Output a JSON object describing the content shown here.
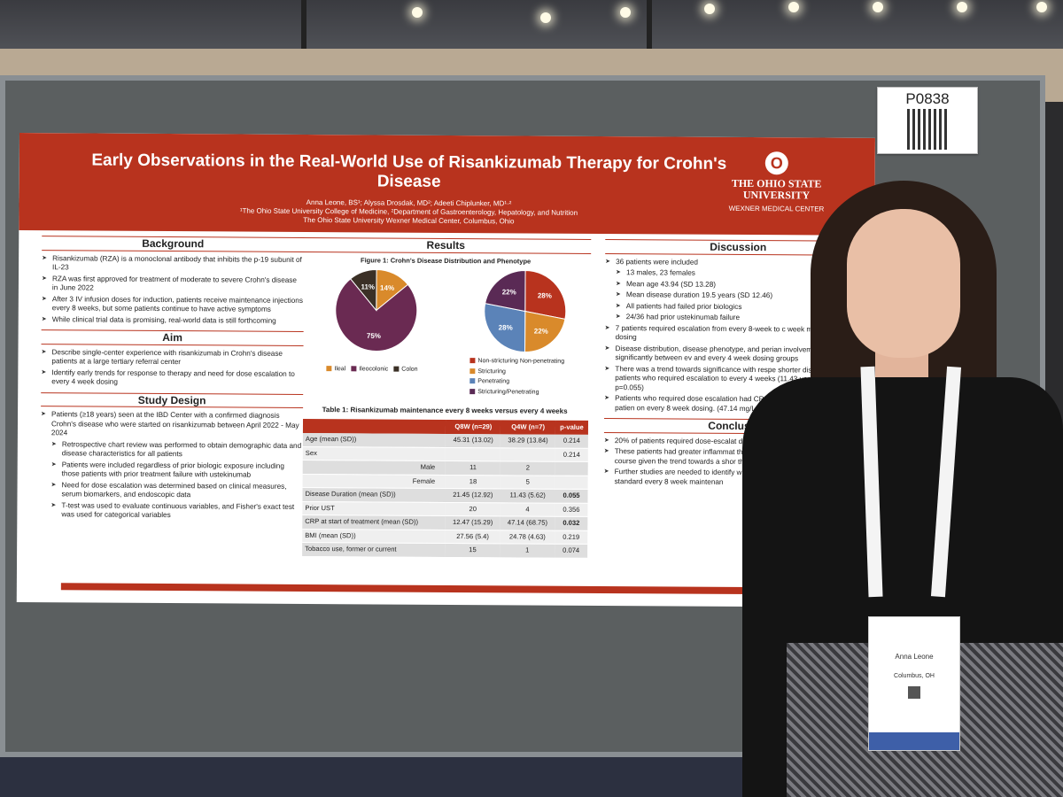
{
  "board_code": "P0838",
  "poster": {
    "title": "Early Observations in the Real-World Use of Risankizumab Therapy for Crohn's Disease",
    "authors": "Anna Leone, BS¹; Alyssa Drosdak, MD²; Adeeti Chiplunker, MD¹·²",
    "affiliation1": "¹The Ohio State University College of Medicine, ²Department of Gastroenterology, Hepatology, and Nutrition",
    "affiliation2": "The Ohio State University Wexner Medical Center, Columbus, Ohio",
    "logo_letter": "O",
    "logo_line1": "THE OHIO STATE",
    "logo_line2": "UNIVERSITY",
    "logo_line3": "WEXNER MEDICAL CENTER",
    "accent_color": "#b8331e"
  },
  "background": {
    "heading": "Background",
    "bullets": [
      "Risankizumab (RZA) is a monoclonal antibody that inhibits the p-19 subunit of IL-23",
      "RZA was first approved for treatment of moderate to severe Crohn's disease in June 2022",
      "After 3 IV infusion doses for induction, patients receive maintenance injections every 8 weeks, but some patients continue to have active symptoms",
      "While clinical trial data is promising, real-world data is still forthcoming"
    ]
  },
  "aim": {
    "heading": "Aim",
    "bullets": [
      "Describe single-center experience with risankizumab in Crohn's disease patients at a large tertiary referral center",
      "Identify early trends for response to therapy and need for dose escalation to every 4 week dosing"
    ]
  },
  "study_design": {
    "heading": "Study Design",
    "bullets": [
      "Patients (≥18 years) seen at the IBD Center with a confirmed diagnosis Crohn's disease who were started on risankizumab between April 2022 - May 2024",
      "Retrospective chart review was performed to obtain demographic data and disease characteristics for all patients",
      "Patients were included regardless of prior biologic exposure including those patients with prior treatment failure with ustekinumab",
      "Need for dose escalation was determined based on clinical measures, serum biomarkers, and endoscopic data",
      "T-test was used to evaluate continuous variables, and Fisher's exact test was used for categorical variables"
    ]
  },
  "results": {
    "heading": "Results",
    "figure_title": "Figure 1: Crohn's Disease Distribution and Phenotype",
    "pie1_legend": [
      "Ileal",
      "Ileocolonic",
      "Colon"
    ],
    "pie2_legend": [
      "Non-stricturing Non-penetrating",
      "Stricturing",
      "Penetrating",
      "Stricturing/Penetrating"
    ],
    "table_title": "Table 1: Risankizumab maintenance every 8 weeks versus every 4 weeks",
    "table_headers": [
      "",
      "Q8W (n=29)",
      "Q4W (n=7)",
      "p-value"
    ],
    "table_rows": [
      [
        "Age (mean (SD))",
        "45.31 (13.02)",
        "38.29 (13.84)",
        "0.214"
      ],
      [
        "Sex",
        "",
        "",
        "0.214"
      ],
      [
        "Male",
        "11",
        "2",
        ""
      ],
      [
        "Female",
        "18",
        "5",
        ""
      ],
      [
        "Disease Duration (mean (SD))",
        "21.45 (12.92)",
        "11.43 (5.62)",
        "0.055"
      ],
      [
        "Prior UST",
        "20",
        "4",
        "0.356"
      ],
      [
        "CRP at start of treatment (mean (SD))",
        "12.47 (15.29)",
        "47.14 (68.75)",
        "0.032"
      ],
      [
        "BMI (mean (SD))",
        "27.56 (5.4)",
        "24.78 (4.63)",
        "0.219"
      ],
      [
        "Tobacco use, former or current",
        "15",
        "1",
        "0.074"
      ]
    ]
  },
  "chart_data": [
    {
      "type": "pie",
      "title": "",
      "categories": [
        "Ileal",
        "Ileocolonic",
        "Colon"
      ],
      "values": [
        14,
        75,
        11
      ],
      "colors": [
        "#d98a2b",
        "#6a2a52",
        "#3b3026"
      ]
    },
    {
      "type": "pie",
      "title": "",
      "categories": [
        "Non-stricturing Non-penetrating",
        "Stricturing",
        "Penetrating",
        "Stricturing/Penetrating"
      ],
      "values": [
        28,
        22,
        28,
        22
      ],
      "colors": [
        "#b8331e",
        "#d98a2b",
        "#5b83b8",
        "#5a2a55"
      ]
    }
  ],
  "discussion": {
    "heading": "Discussion",
    "bullets": [
      {
        "t": "36 patients were included",
        "sub": false
      },
      {
        "t": "13 males, 23 females",
        "sub": true
      },
      {
        "t": "Mean age 43.94 (SD 13.28)",
        "sub": true
      },
      {
        "t": "Mean disease duration 19.5 years (SD 12.46)",
        "sub": true
      },
      {
        "t": "All patients had failed prior biologics",
        "sub": true
      },
      {
        "t": "24/36 had prior ustekinumab failure",
        "sub": true
      },
      {
        "t": "7 patients required escalation from every 8-week to c week maintenance dosing",
        "sub": false
      },
      {
        "t": "Disease distribution, disease phenotype, and perian involvement did not differ significantly between ev and every 4 week dosing groups",
        "sub": false
      },
      {
        "t": "There was a trend towards significance with respe shorter disease duration in patients who required escalation to every 4 weeks (11.43 years versus p=0.055)",
        "sub": false
      },
      {
        "t": "Patients who required dose escalation had CRP prior to initiation compared to patien on every 8 week dosing. (47.14 mg/L ver p=0.032)",
        "sub": false
      }
    ]
  },
  "conclusion": {
    "heading": "Conclusion",
    "bullets": [
      "20% of patients required dose-escalat due to ongoing symptoms",
      "These patients had greater inflammat therapy initiation and may have a mo course given the trend towards a shor these patients",
      "Further studies are needed to identify who may require dose escalation due the standard every 8 week maintenan"
    ]
  },
  "badge": {
    "name": "Anna Leone",
    "city": "Columbus, OH"
  }
}
